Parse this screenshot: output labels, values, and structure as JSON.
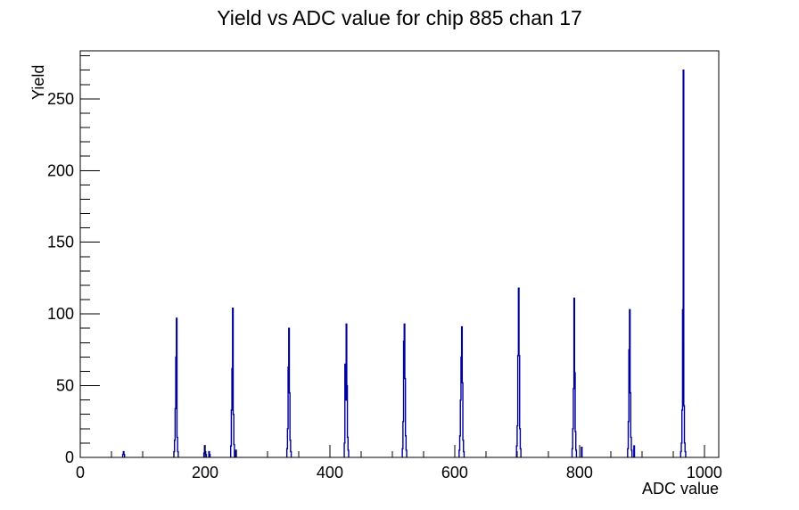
{
  "chart_data": {
    "type": "bar",
    "title": "Yield vs ADC value for chip 885 chan 17",
    "xlabel": "ADC value",
    "ylabel": "Yield",
    "xlim": [
      0,
      1023
    ],
    "ylim": [
      0,
      283.5
    ],
    "bin_width": 1,
    "grid": false,
    "legend": false,
    "line_color": "#00009c",
    "frame_color": "#000000",
    "x_major_tick_step": 200,
    "x_minor_tick_step": 50,
    "y_major_tick_step": 50,
    "y_minor_tick_step": 10,
    "x_tick_labels": [
      "0",
      "200",
      "400",
      "600",
      "800",
      "1000"
    ],
    "y_tick_labels": [
      "0",
      "50",
      "100",
      "150",
      "200",
      "250"
    ],
    "bins": [
      [
        68,
        2
      ],
      [
        69,
        4
      ],
      [
        70,
        2
      ],
      [
        150,
        4
      ],
      [
        151,
        12
      ],
      [
        152,
        34
      ],
      [
        153,
        70
      ],
      [
        154,
        97
      ],
      [
        155,
        14
      ],
      [
        156,
        4
      ],
      [
        198,
        3
      ],
      [
        199,
        8
      ],
      [
        200,
        4
      ],
      [
        201,
        2
      ],
      [
        206,
        4
      ],
      [
        207,
        2
      ],
      [
        241,
        8
      ],
      [
        242,
        33
      ],
      [
        243,
        62
      ],
      [
        244,
        104
      ],
      [
        245,
        30
      ],
      [
        246,
        9
      ],
      [
        249,
        5
      ],
      [
        331,
        6
      ],
      [
        332,
        20
      ],
      [
        333,
        63
      ],
      [
        334,
        90
      ],
      [
        335,
        45
      ],
      [
        336,
        12
      ],
      [
        337,
        4
      ],
      [
        423,
        10
      ],
      [
        424,
        65
      ],
      [
        425,
        40
      ],
      [
        426,
        93
      ],
      [
        427,
        50
      ],
      [
        428,
        14
      ],
      [
        429,
        5
      ],
      [
        516,
        6
      ],
      [
        517,
        25
      ],
      [
        518,
        81
      ],
      [
        519,
        93
      ],
      [
        520,
        55
      ],
      [
        521,
        15
      ],
      [
        522,
        5
      ],
      [
        607,
        5
      ],
      [
        608,
        15
      ],
      [
        609,
        40
      ],
      [
        610,
        70
      ],
      [
        611,
        91
      ],
      [
        612,
        52
      ],
      [
        613,
        12
      ],
      [
        614,
        4
      ],
      [
        699,
        8
      ],
      [
        700,
        22
      ],
      [
        701,
        71
      ],
      [
        702,
        118
      ],
      [
        703,
        71
      ],
      [
        704,
        20
      ],
      [
        705,
        6
      ],
      [
        788,
        6
      ],
      [
        789,
        20
      ],
      [
        790,
        48
      ],
      [
        791,
        111
      ],
      [
        792,
        59
      ],
      [
        793,
        18
      ],
      [
        794,
        5
      ],
      [
        803,
        7
      ],
      [
        877,
        6
      ],
      [
        878,
        25
      ],
      [
        879,
        75
      ],
      [
        880,
        103
      ],
      [
        881,
        45
      ],
      [
        882,
        14
      ],
      [
        883,
        5
      ],
      [
        887,
        8
      ],
      [
        962,
        4
      ],
      [
        963,
        10
      ],
      [
        964,
        33
      ],
      [
        965,
        103
      ],
      [
        966,
        270
      ],
      [
        967,
        36
      ],
      [
        968,
        10
      ],
      [
        969,
        4
      ]
    ],
    "peaks_summary": [
      {
        "adc": 154,
        "yield": 97
      },
      {
        "adc": 244,
        "yield": 104
      },
      {
        "adc": 334,
        "yield": 90
      },
      {
        "adc": 426,
        "yield": 93
      },
      {
        "adc": 519,
        "yield": 93
      },
      {
        "adc": 611,
        "yield": 91
      },
      {
        "adc": 702,
        "yield": 118
      },
      {
        "adc": 791,
        "yield": 111
      },
      {
        "adc": 880,
        "yield": 103
      },
      {
        "adc": 966,
        "yield": 270
      }
    ]
  }
}
